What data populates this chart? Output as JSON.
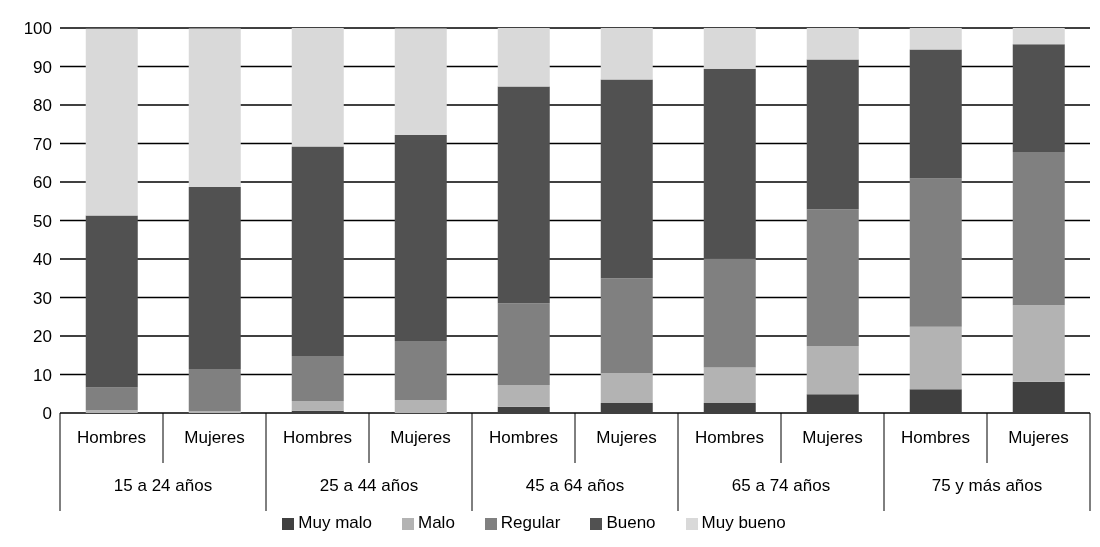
{
  "chart_data": {
    "type": "bar",
    "stacked": true,
    "categories": [
      "Hombres",
      "Mujeres",
      "Hombres",
      "Mujeres",
      "Hombres",
      "Mujeres",
      "Hombres",
      "Mujeres",
      "Hombres",
      "Mujeres"
    ],
    "annotations": [
      "15 a 24 años",
      "25 a 44 años",
      "45 a 64 años",
      "65 a 74 años",
      "75 y más años"
    ],
    "series": [
      {
        "name": "Muy malo",
        "color": "#404040",
        "values": [
          null,
          null,
          0.6,
          null,
          1.6,
          2.6,
          2.6,
          4.9,
          6.2,
          8.1
        ]
      },
      {
        "name": "Malo",
        "color": "#b3b3b3",
        "values": [
          0.7,
          0.5,
          2.5,
          3.4,
          5.7,
          7.8,
          9.2,
          12.5,
          16.2,
          19.9
        ]
      },
      {
        "name": "Regular",
        "color": "#808080",
        "values": [
          5.9,
          10.9,
          11.7,
          15.3,
          21.2,
          24.6,
          28.3,
          35.5,
          38.5,
          39.8
        ]
      },
      {
        "name": "Bueno",
        "color": "#515151",
        "values": [
          44.7,
          47.3,
          54.4,
          53.5,
          56.3,
          51.6,
          49.3,
          38.9,
          33.5,
          28.0
        ]
      },
      {
        "name": "Muy bueno",
        "color": "#d9d9d9",
        "values": [
          48.5,
          41.2,
          30.8,
          27.7,
          15.2,
          13.4,
          10.6,
          8.2,
          5.6,
          4.2
        ]
      }
    ],
    "ylim": [
      0,
      100
    ],
    "yticks": [
      0,
      10,
      20,
      30,
      40,
      50,
      60,
      70,
      80,
      90,
      100
    ],
    "grid": "y",
    "legend": "bottom"
  }
}
